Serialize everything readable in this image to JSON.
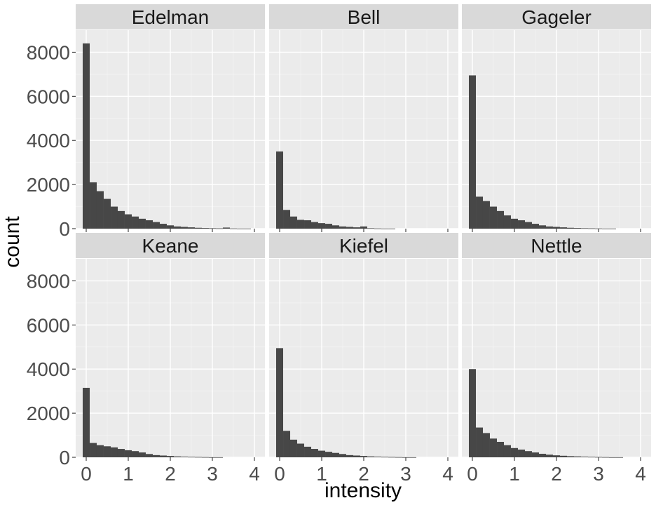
{
  "chart_data": {
    "type": "bar",
    "subtype": "faceted histogram",
    "xlabel": "intensity",
    "ylabel": "count",
    "xlim": [
      -0.25,
      4.25
    ],
    "ylim": [
      0,
      9000
    ],
    "x_ticks": [
      0,
      1,
      2,
      3,
      4
    ],
    "y_ticks": [
      0,
      2000,
      4000,
      6000,
      8000
    ],
    "bin_width": 0.1667,
    "grid": true,
    "facet_layout": "2 rows x 3 columns",
    "bar_color": "#474747",
    "panel_background": "#ebebeb",
    "strip_background": "#d9d9d9",
    "bin_centers": [
      0,
      0.167,
      0.333,
      0.5,
      0.667,
      0.833,
      1,
      1.167,
      1.333,
      1.5,
      1.667,
      1.833,
      2,
      2.167,
      2.333,
      2.5,
      2.667,
      2.833,
      3,
      3.167,
      3.333,
      3.5,
      3.667,
      3.833,
      4
    ],
    "series": [
      {
        "name": "Edelman",
        "values": [
          8400,
          2100,
          1700,
          1350,
          1000,
          800,
          650,
          550,
          450,
          380,
          300,
          220,
          150,
          100,
          80,
          60,
          40,
          30,
          20,
          15,
          50,
          10,
          5,
          5,
          0
        ]
      },
      {
        "name": "Bell",
        "values": [
          3500,
          850,
          550,
          400,
          380,
          300,
          250,
          220,
          150,
          100,
          80,
          60,
          100,
          20,
          10,
          5,
          5,
          0,
          0,
          0,
          0,
          0,
          0,
          0,
          0
        ]
      },
      {
        "name": "Gageler",
        "values": [
          6950,
          1450,
          1250,
          1000,
          800,
          600,
          450,
          380,
          300,
          220,
          150,
          100,
          80,
          60,
          40,
          30,
          20,
          15,
          10,
          5,
          5,
          0,
          0,
          0,
          0
        ]
      },
      {
        "name": "Keane",
        "values": [
          3150,
          650,
          550,
          500,
          450,
          380,
          320,
          280,
          220,
          150,
          100,
          80,
          60,
          40,
          30,
          20,
          15,
          10,
          5,
          5,
          0,
          0,
          0,
          0,
          0
        ]
      },
      {
        "name": "Kiefel",
        "values": [
          4950,
          1200,
          800,
          620,
          480,
          380,
          300,
          250,
          200,
          150,
          100,
          80,
          60,
          40,
          30,
          20,
          15,
          10,
          5,
          5,
          0,
          0,
          0,
          0,
          0
        ]
      },
      {
        "name": "Nettle",
        "values": [
          4000,
          1350,
          1100,
          850,
          700,
          550,
          420,
          350,
          280,
          220,
          160,
          120,
          90,
          70,
          50,
          40,
          30,
          20,
          15,
          10,
          5,
          5,
          0,
          0,
          0
        ]
      }
    ]
  }
}
